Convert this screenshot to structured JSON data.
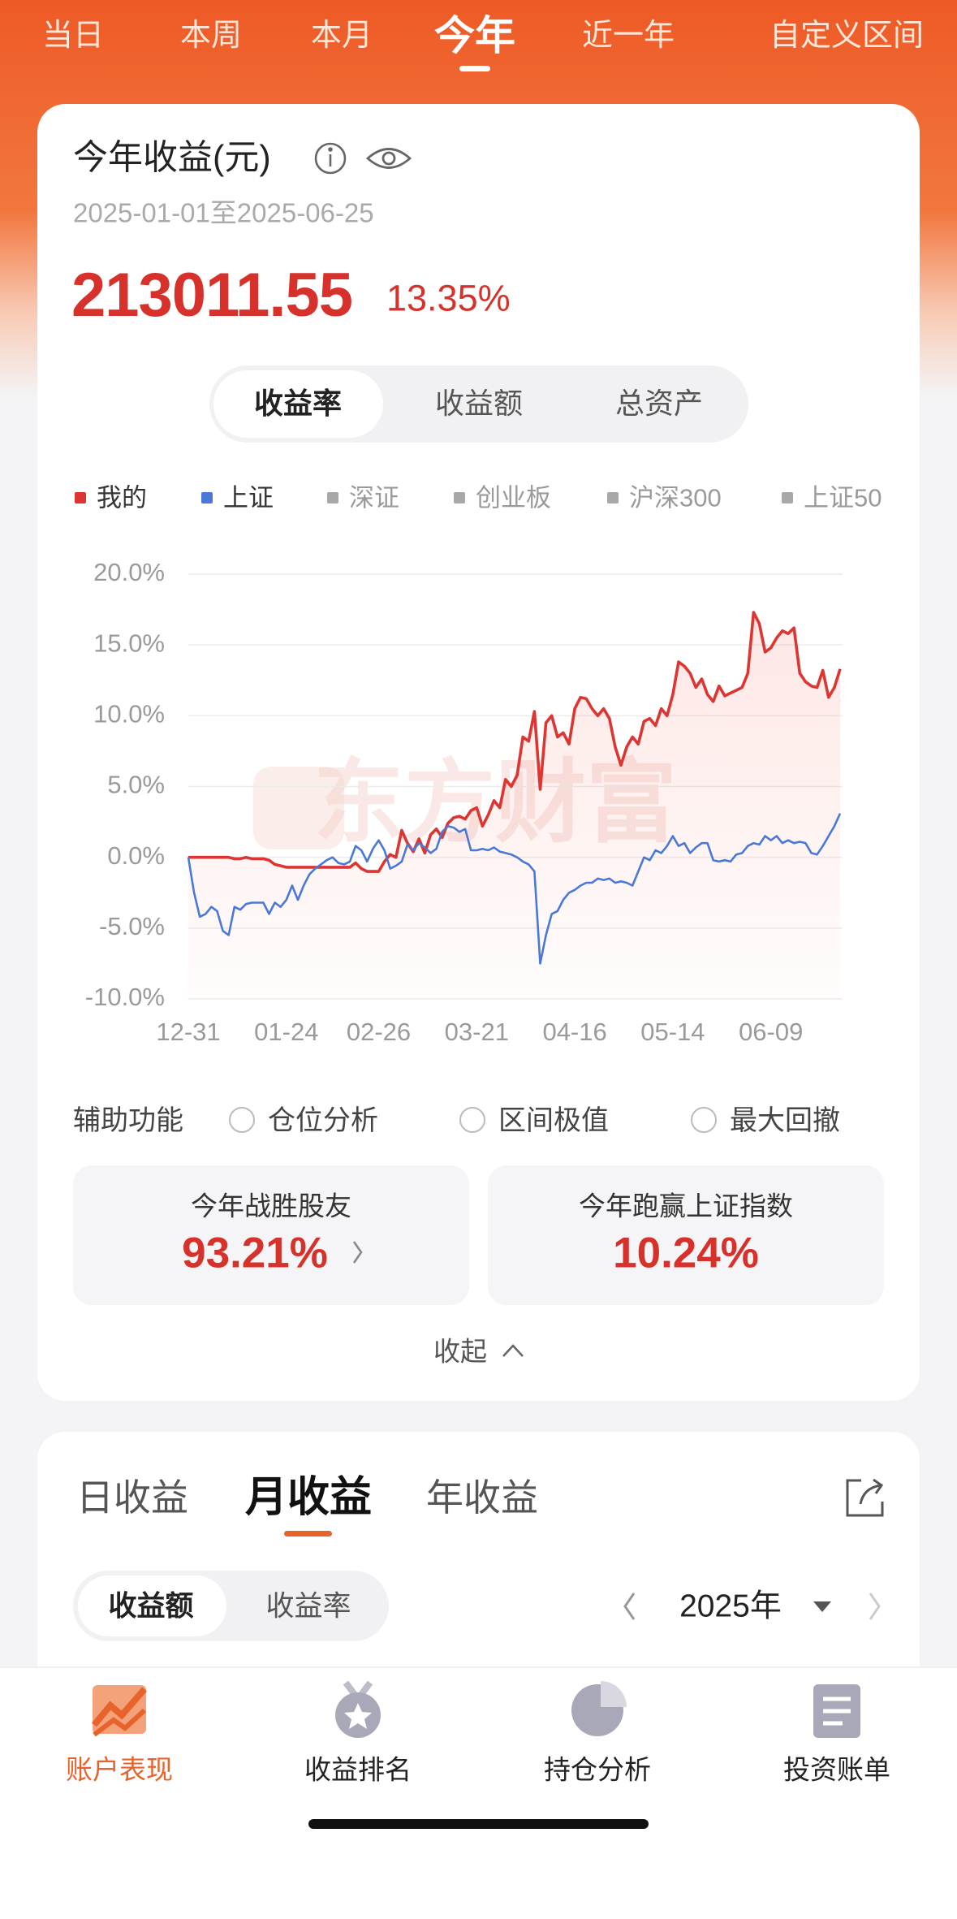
{
  "tabs": {
    "items": [
      "当日",
      "本周",
      "本月",
      "今年",
      "近一年",
      "自定义区间"
    ],
    "active": 3
  },
  "summary": {
    "title": "今年收益(元)",
    "date_range": "2025-01-01至2025-06-25",
    "amount": "213011.55",
    "rate": "13.35%"
  },
  "segments": {
    "items": [
      "收益率",
      "收益额",
      "总资产"
    ],
    "active": 0
  },
  "chart_data": {
    "type": "line",
    "watermark": "东方财富",
    "series": [
      {
        "name": "我的",
        "color": "#dd3532",
        "values": [
          0.0,
          0.0,
          0.0,
          0.0,
          0.0,
          0.0,
          0.0,
          0.0,
          -0.1,
          -0.1,
          0.0,
          -0.1,
          -0.1,
          -0.1,
          -0.2,
          -0.5,
          -0.6,
          -0.7,
          -0.7,
          -0.7,
          -0.7,
          -0.7,
          -0.7,
          -0.7,
          -0.7,
          -0.7,
          -0.7,
          -0.7,
          -0.7,
          -0.4,
          -0.8,
          -1.0,
          -1.0,
          -1.0,
          -0.3,
          0.2,
          0.0,
          1.9,
          1.0,
          0.4,
          1.3,
          0.3,
          1.6,
          2.0,
          1.4,
          2.4,
          2.8,
          2.9,
          2.7,
          3.3,
          3.5,
          2.2,
          3.0,
          4.0,
          3.5,
          5.5,
          5.0,
          5.8,
          8.5,
          8.2,
          10.3,
          4.8,
          9.5,
          10.0,
          8.5,
          8.8,
          8.0,
          10.5,
          11.3,
          11.2,
          10.5,
          10.0,
          10.5,
          9.8,
          7.8,
          6.5,
          7.8,
          8.5,
          8.0,
          9.6,
          9.8,
          9.3,
          10.5,
          10.0,
          11.5,
          13.8,
          13.5,
          13.0,
          12.0,
          12.6,
          11.5,
          11.0,
          12.1,
          11.4,
          11.6,
          11.8,
          12.0,
          13.0,
          17.3,
          16.5,
          14.5,
          14.8,
          15.5,
          16.0,
          15.8,
          16.2,
          13.0,
          12.4,
          12.1,
          12.0,
          13.2,
          11.3,
          12.0,
          13.3
        ]
      },
      {
        "name": "上证",
        "color": "#4a78d8",
        "values": [
          0,
          -2.5,
          -4.2,
          -4.0,
          -3.5,
          -3.8,
          -5.2,
          -5.5,
          -3.5,
          -3.7,
          -3.3,
          -3.2,
          -3.2,
          -3.2,
          -4.0,
          -3.2,
          -3.5,
          -3.0,
          -2.0,
          -3.0,
          -2.0,
          -1.2,
          -0.8,
          -0.5,
          -0.2,
          0.0,
          -0.4,
          -0.5,
          -0.3,
          0.8,
          0.5,
          -0.3,
          0.6,
          1.2,
          0.5,
          -0.8,
          -0.6,
          -0.3,
          0.9,
          0.5,
          1.0,
          0.7,
          0.3,
          0.6,
          1.8,
          2.2,
          2.1,
          1.8,
          2.0,
          0.5,
          0.5,
          0.6,
          0.5,
          0.7,
          0.4,
          0.3,
          0.2,
          0.0,
          -0.3,
          -0.5,
          -1.0,
          -7.5,
          -5.5,
          -4.0,
          -3.8,
          -3.0,
          -2.5,
          -2.3,
          -2.0,
          -1.8,
          -1.8,
          -1.5,
          -1.6,
          -1.5,
          -1.8,
          -1.7,
          -1.8,
          -2.0,
          -1.0,
          0.0,
          -0.2,
          0.5,
          0.3,
          0.8,
          1.5,
          0.8,
          1.0,
          0.3,
          0.7,
          1.0,
          1.0,
          -0.2,
          -0.3,
          -0.2,
          -0.3,
          0.2,
          0.3,
          0.8,
          1.0,
          0.9,
          1.5,
          1.2,
          1.5,
          1.0,
          1.2,
          1.0,
          1.1,
          1.0,
          0.3,
          0.2,
          0.8,
          1.5,
          2.2,
          3.1
        ]
      }
    ],
    "inactive_series": [
      {
        "name": "深证",
        "color": "#a8a8a8"
      },
      {
        "name": "创业板",
        "color": "#a8a8a8"
      },
      {
        "name": "沪深300",
        "color": "#a8a8a8"
      },
      {
        "name": "上证50",
        "color": "#a8a8a8"
      }
    ],
    "xlim": [
      0,
      113
    ],
    "xticks": [
      {
        "value": 0,
        "label": "12-31"
      },
      {
        "value": 17,
        "label": "01-24"
      },
      {
        "value": 33,
        "label": "02-26"
      },
      {
        "value": 50,
        "label": "03-21"
      },
      {
        "value": 67,
        "label": "04-16"
      },
      {
        "value": 84,
        "label": "05-14"
      },
      {
        "value": 101,
        "label": "06-09"
      }
    ],
    "ylim": [
      -10,
      20
    ],
    "yticks": [
      {
        "value": -10,
        "label": "-10.0%"
      },
      {
        "value": -5,
        "label": "-5.0%"
      },
      {
        "value": 0,
        "label": "0.0%"
      },
      {
        "value": 5,
        "label": "5.0%"
      },
      {
        "value": 10,
        "label": "10.0%"
      },
      {
        "value": 15,
        "label": "15.0%"
      },
      {
        "value": 20,
        "label": "20.0%"
      }
    ],
    "grid": true,
    "area": true
  },
  "aux": {
    "label": "辅助功能",
    "options": [
      "仓位分析",
      "区间极值",
      "最大回撤"
    ]
  },
  "stats": [
    {
      "label": "今年战胜股友",
      "value": "93.21%"
    },
    {
      "label": "今年跑赢上证指数",
      "value": "10.24%"
    }
  ],
  "collapse": "收起",
  "period_tabs": {
    "items": [
      "日收益",
      "月收益",
      "年收益"
    ],
    "active": 1
  },
  "metric_toggle": {
    "items": [
      "收益额",
      "收益率"
    ],
    "active": 0
  },
  "year": "2025年",
  "nav": {
    "items": [
      "账户表现",
      "收益排名",
      "持仓分析",
      "投资账单"
    ],
    "active": 0
  }
}
